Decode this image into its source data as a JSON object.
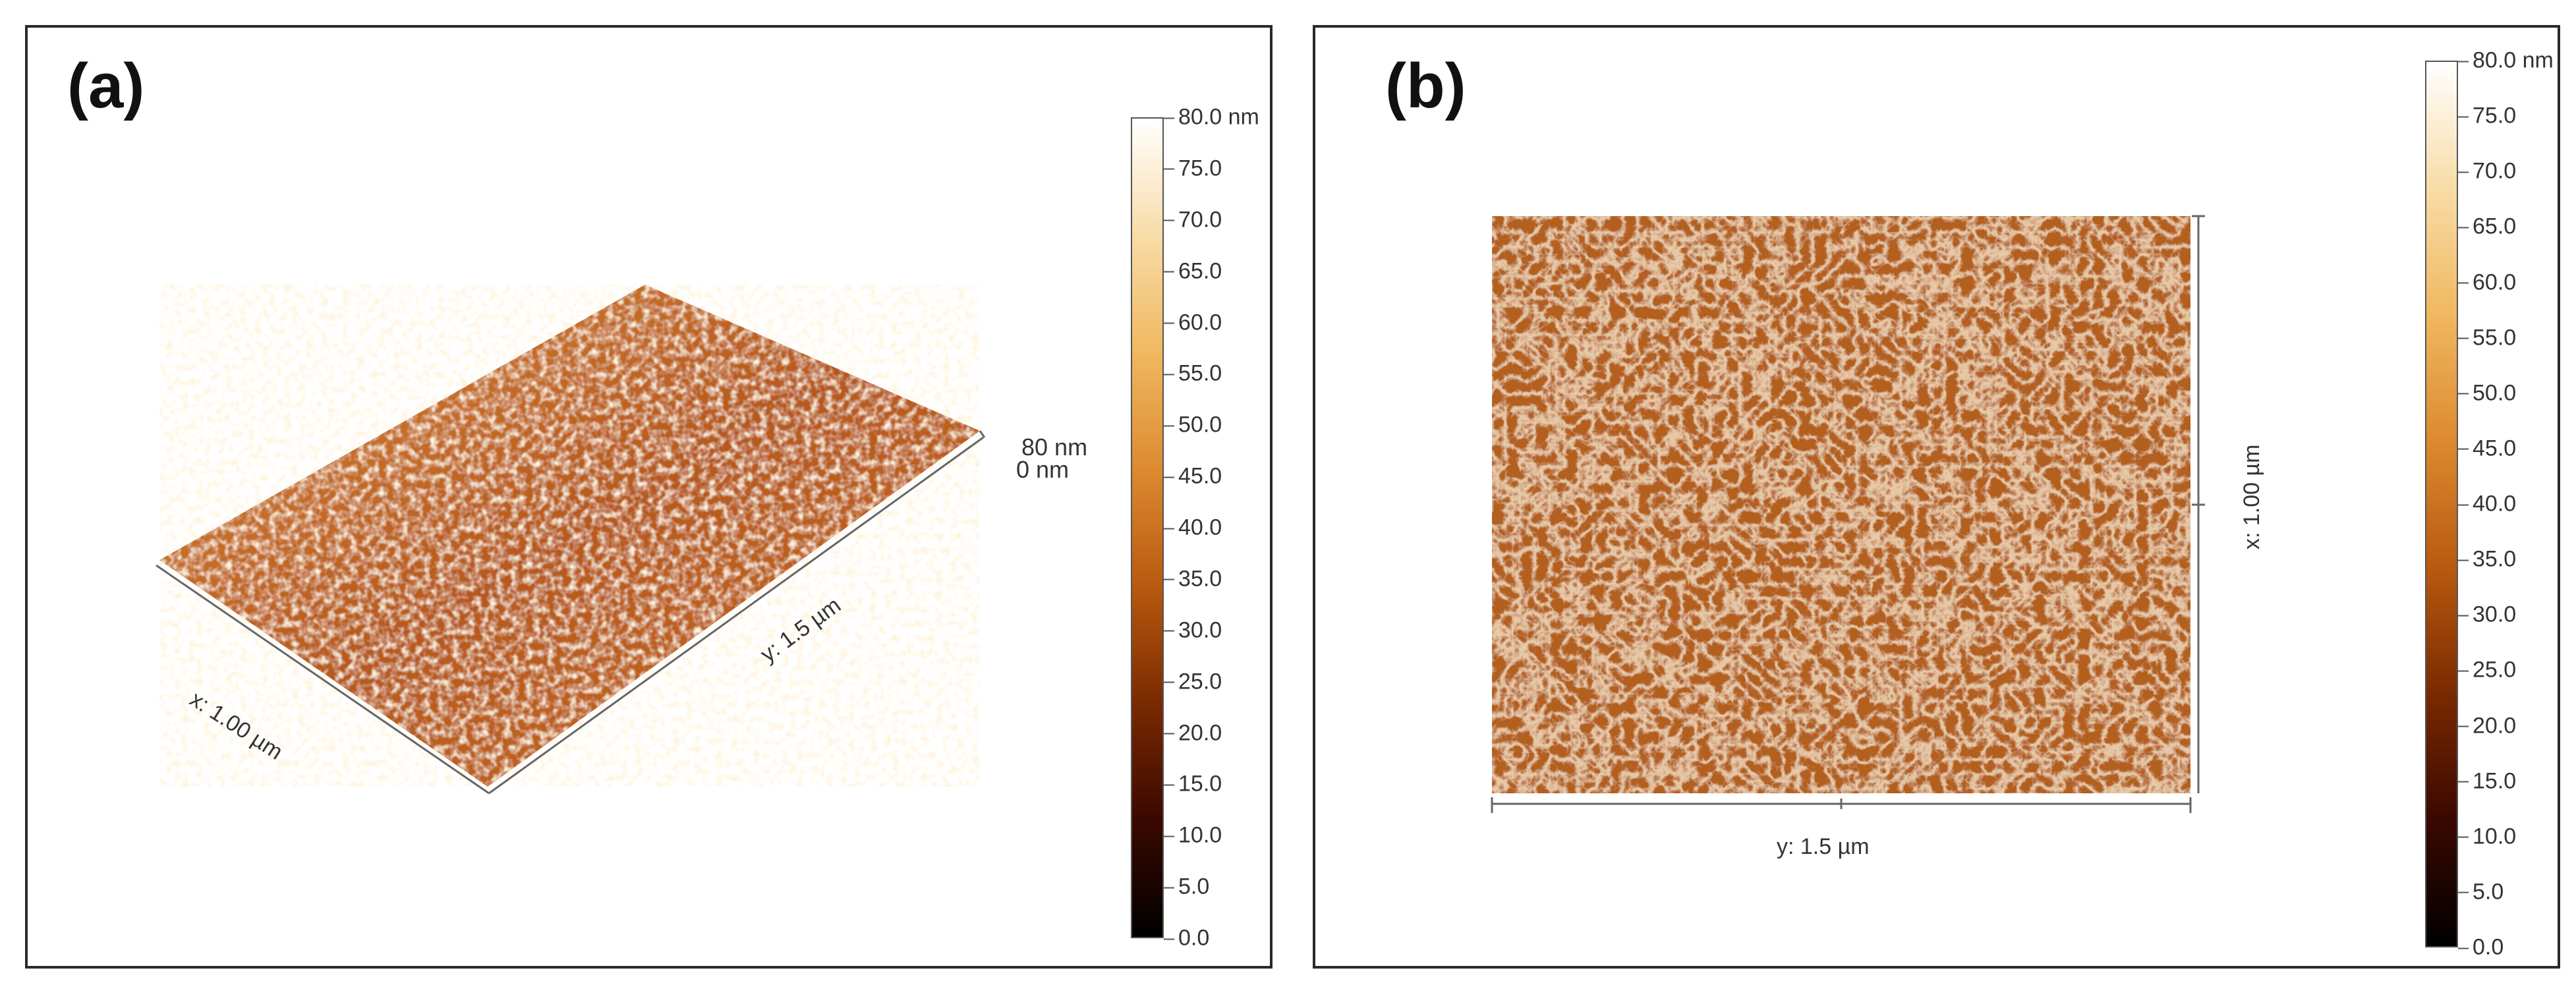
{
  "panel_a": {
    "label": "(a)",
    "view": "3D surface",
    "x_axis_label": "x: 1.00 µm",
    "y_axis_label": "y: 1.5 µm",
    "z_top_label": "80 nm",
    "z_bottom_label": "0 nm"
  },
  "panel_b": {
    "label": "(b)",
    "view": "2D top-down height map",
    "x_axis_label": "x: 1.00 µm",
    "y_axis_label": "y: 1.5 µm"
  },
  "colorbar": {
    "top_label": "80.0 nm",
    "ticks": [
      "75.0",
      "70.0",
      "65.0",
      "60.0",
      "55.0",
      "50.0",
      "45.0",
      "40.0",
      "35.0",
      "30.0",
      "25.0",
      "20.0",
      "15.0",
      "10.0",
      "5.0",
      "0.0"
    ],
    "max_value": 80.0,
    "min_value": 0.0,
    "unit": "nm",
    "colors": [
      "#000000",
      "#3a0800",
      "#7a2a00",
      "#b85a10",
      "#dc8a30",
      "#f0b860",
      "#f8dca8",
      "#ffffff"
    ]
  }
}
